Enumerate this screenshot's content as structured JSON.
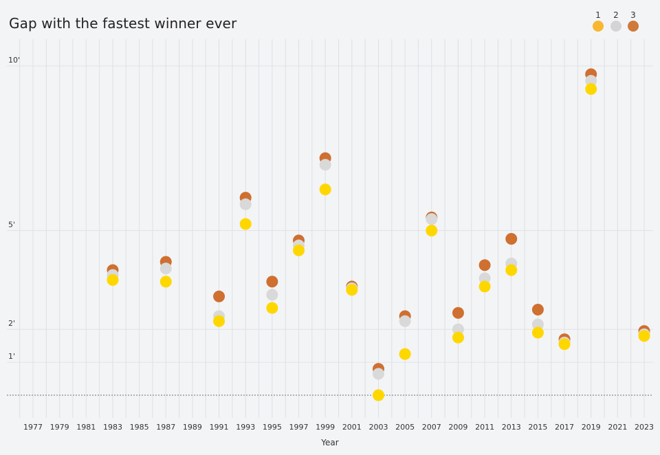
{
  "chart_data": {
    "type": "scatter",
    "title": "Gap with the fastest winner ever",
    "xlabel": "Year",
    "ylabel": "",
    "y_ticks": [
      {
        "value": 1,
        "label": "1'"
      },
      {
        "value": 2,
        "label": "2'"
      },
      {
        "value": 5,
        "label": "5'"
      },
      {
        "value": 10,
        "label": "10'"
      }
    ],
    "ylim": [
      -1,
      10.8
    ],
    "xlim": [
      1976,
      2024
    ],
    "x_ticks": [
      1977,
      1979,
      1981,
      1983,
      1985,
      1987,
      1989,
      1991,
      1993,
      1995,
      1997,
      1999,
      2001,
      2003,
      2005,
      2007,
      2009,
      2011,
      2013,
      2015,
      2017,
      2019,
      2021,
      2023
    ],
    "grid": true,
    "legend": {
      "position": "top-right",
      "entries": [
        {
          "label": "1",
          "color": "#f7b731"
        },
        {
          "label": "2",
          "color": "#d4d4d4"
        },
        {
          "label": "3",
          "color": "#cf7a3c"
        }
      ]
    },
    "baseline": {
      "value": 0,
      "style": "dotted"
    },
    "series": [
      {
        "name": "1",
        "color": "#ffd700",
        "points": [
          {
            "x": 1983,
            "y": 3.5
          },
          {
            "x": 1987,
            "y": 3.45
          },
          {
            "x": 1991,
            "y": 2.25
          },
          {
            "x": 1993,
            "y": 5.2
          },
          {
            "x": 1995,
            "y": 2.65
          },
          {
            "x": 1997,
            "y": 4.4
          },
          {
            "x": 1999,
            "y": 6.25
          },
          {
            "x": 2001,
            "y": 3.2
          },
          {
            "x": 2003,
            "y": 0
          },
          {
            "x": 2005,
            "y": 1.25
          },
          {
            "x": 2007,
            "y": 5.0
          },
          {
            "x": 2009,
            "y": 1.75
          },
          {
            "x": 2011,
            "y": 3.3
          },
          {
            "x": 2013,
            "y": 3.8
          },
          {
            "x": 2015,
            "y": 1.9
          },
          {
            "x": 2017,
            "y": 1.55
          },
          {
            "x": 2019,
            "y": 9.3
          },
          {
            "x": 2023,
            "y": 1.8
          }
        ]
      },
      {
        "name": "2",
        "color": "#d9d9d9",
        "points": [
          {
            "x": 1983,
            "y": 3.65
          },
          {
            "x": 1987,
            "y": 3.85
          },
          {
            "x": 1991,
            "y": 2.4
          },
          {
            "x": 1993,
            "y": 5.8
          },
          {
            "x": 1995,
            "y": 3.05
          },
          {
            "x": 1997,
            "y": 4.55
          },
          {
            "x": 1999,
            "y": 7.0
          },
          {
            "x": 2001,
            "y": 3.25
          },
          {
            "x": 2003,
            "y": 0.65
          },
          {
            "x": 2005,
            "y": 2.25
          },
          {
            "x": 2007,
            "y": 5.35
          },
          {
            "x": 2009,
            "y": 2.0
          },
          {
            "x": 2011,
            "y": 3.55
          },
          {
            "x": 2013,
            "y": 4.0
          },
          {
            "x": 2015,
            "y": 2.15
          },
          {
            "x": 2017,
            "y": 1.6
          },
          {
            "x": 2019,
            "y": 9.55
          },
          {
            "x": 2023,
            "y": 1.85
          }
        ]
      },
      {
        "name": "3",
        "color": "#cf6f30",
        "points": [
          {
            "x": 1983,
            "y": 3.8
          },
          {
            "x": 1987,
            "y": 4.05
          },
          {
            "x": 1991,
            "y": 3.0
          },
          {
            "x": 1993,
            "y": 6.0
          },
          {
            "x": 1995,
            "y": 3.45
          },
          {
            "x": 1997,
            "y": 4.7
          },
          {
            "x": 1999,
            "y": 7.2
          },
          {
            "x": 2001,
            "y": 3.3
          },
          {
            "x": 2003,
            "y": 0.8
          },
          {
            "x": 2005,
            "y": 2.4
          },
          {
            "x": 2007,
            "y": 5.4
          },
          {
            "x": 2009,
            "y": 2.5
          },
          {
            "x": 2011,
            "y": 3.95
          },
          {
            "x": 2013,
            "y": 4.75
          },
          {
            "x": 2015,
            "y": 2.6
          },
          {
            "x": 2017,
            "y": 1.7
          },
          {
            "x": 2019,
            "y": 9.75
          },
          {
            "x": 2023,
            "y": 1.95
          }
        ]
      }
    ]
  }
}
